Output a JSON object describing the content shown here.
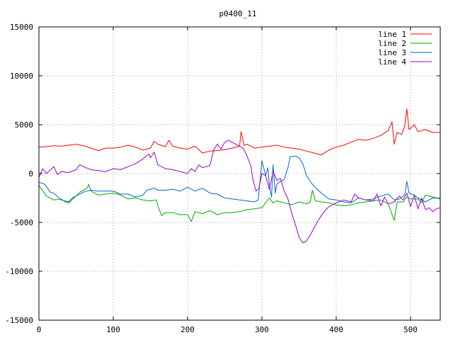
{
  "chart_data": {
    "type": "line",
    "title": "p0400_11",
    "xlim": [
      0,
      540
    ],
    "ylim": [
      -15000,
      15000
    ],
    "x_ticks": [
      0,
      100,
      200,
      300,
      400,
      500
    ],
    "y_ticks": [
      -15000,
      -10000,
      -5000,
      0,
      5000,
      10000,
      15000
    ],
    "x_tick_labels": [
      "0",
      "100",
      "200",
      "300",
      "400",
      "500"
    ],
    "y_tick_labels": [
      "-15000",
      "-10000",
      "-5000",
      "0",
      "5000",
      "10000",
      "15000"
    ],
    "grid": true,
    "legend_placement": "top-right",
    "series": [
      {
        "name": "line 1",
        "color": "#ff0000",
        "points": [
          [
            0,
            2700
          ],
          [
            10,
            2750
          ],
          [
            20,
            2850
          ],
          [
            30,
            2800
          ],
          [
            40,
            2900
          ],
          [
            50,
            3000
          ],
          [
            60,
            2850
          ],
          [
            70,
            2600
          ],
          [
            80,
            2350
          ],
          [
            90,
            2600
          ],
          [
            100,
            2600
          ],
          [
            110,
            2700
          ],
          [
            120,
            2900
          ],
          [
            130,
            2700
          ],
          [
            140,
            2400
          ],
          [
            150,
            2600
          ],
          [
            155,
            3300
          ],
          [
            160,
            3000
          ],
          [
            170,
            2750
          ],
          [
            175,
            3400
          ],
          [
            180,
            2800
          ],
          [
            190,
            2600
          ],
          [
            200,
            2500
          ],
          [
            210,
            2800
          ],
          [
            220,
            2100
          ],
          [
            230,
            2300
          ],
          [
            240,
            2350
          ],
          [
            250,
            2450
          ],
          [
            260,
            2600
          ],
          [
            270,
            2800
          ],
          [
            272,
            4300
          ],
          [
            276,
            2900
          ],
          [
            280,
            3000
          ],
          [
            290,
            2600
          ],
          [
            300,
            2700
          ],
          [
            310,
            2800
          ],
          [
            320,
            2900
          ],
          [
            330,
            2700
          ],
          [
            340,
            2600
          ],
          [
            350,
            2500
          ],
          [
            360,
            2300
          ],
          [
            370,
            2100
          ],
          [
            380,
            1900
          ],
          [
            390,
            2400
          ],
          [
            400,
            2700
          ],
          [
            410,
            2900
          ],
          [
            420,
            3200
          ],
          [
            430,
            3500
          ],
          [
            440,
            3400
          ],
          [
            450,
            3600
          ],
          [
            460,
            3900
          ],
          [
            470,
            4400
          ],
          [
            475,
            5300
          ],
          [
            478,
            3000
          ],
          [
            482,
            4200
          ],
          [
            488,
            4000
          ],
          [
            492,
            4800
          ],
          [
            495,
            6600
          ],
          [
            498,
            4500
          ],
          [
            505,
            5000
          ],
          [
            510,
            4300
          ],
          [
            520,
            4500
          ],
          [
            530,
            4200
          ],
          [
            540,
            4200
          ]
        ]
      },
      {
        "name": "line 2",
        "color": "#00aa00",
        "points": [
          [
            0,
            -1200
          ],
          [
            10,
            -2300
          ],
          [
            20,
            -2700
          ],
          [
            30,
            -2600
          ],
          [
            35,
            -2900
          ],
          [
            40,
            -3000
          ],
          [
            50,
            -2300
          ],
          [
            55,
            -1900
          ],
          [
            60,
            -1700
          ],
          [
            65,
            -1500
          ],
          [
            67,
            -1100
          ],
          [
            70,
            -1800
          ],
          [
            80,
            -2200
          ],
          [
            90,
            -2100
          ],
          [
            100,
            -2000
          ],
          [
            110,
            -2200
          ],
          [
            120,
            -2600
          ],
          [
            130,
            -2500
          ],
          [
            140,
            -2700
          ],
          [
            150,
            -2800
          ],
          [
            158,
            -2700
          ],
          [
            160,
            -3300
          ],
          [
            165,
            -4300
          ],
          [
            170,
            -4000
          ],
          [
            180,
            -4000
          ],
          [
            190,
            -4200
          ],
          [
            200,
            -4200
          ],
          [
            205,
            -4900
          ],
          [
            210,
            -3900
          ],
          [
            220,
            -4100
          ],
          [
            230,
            -3800
          ],
          [
            240,
            -4200
          ],
          [
            250,
            -4000
          ],
          [
            260,
            -4000
          ],
          [
            270,
            -3900
          ],
          [
            280,
            -3700
          ],
          [
            290,
            -3600
          ],
          [
            300,
            -3500
          ],
          [
            310,
            -2500
          ],
          [
            315,
            -3000
          ],
          [
            320,
            -2800
          ],
          [
            330,
            -3000
          ],
          [
            340,
            -3200
          ],
          [
            350,
            -2900
          ],
          [
            360,
            -3100
          ],
          [
            365,
            -2900
          ],
          [
            368,
            -1700
          ],
          [
            372,
            -2800
          ],
          [
            380,
            -2900
          ],
          [
            390,
            -3000
          ],
          [
            400,
            -3200
          ],
          [
            410,
            -3300
          ],
          [
            420,
            -3200
          ],
          [
            430,
            -3000
          ],
          [
            440,
            -2900
          ],
          [
            450,
            -2800
          ],
          [
            460,
            -2700
          ],
          [
            470,
            -3100
          ],
          [
            478,
            -4800
          ],
          [
            482,
            -2900
          ],
          [
            490,
            -2900
          ],
          [
            495,
            -2400
          ],
          [
            500,
            -2600
          ],
          [
            510,
            -2600
          ],
          [
            515,
            -3000
          ],
          [
            520,
            -2200
          ],
          [
            530,
            -2400
          ],
          [
            540,
            -2600
          ]
        ]
      },
      {
        "name": "line 3",
        "color": "#0066cc",
        "points": [
          [
            0,
            -900
          ],
          [
            8,
            -1100
          ],
          [
            15,
            -1900
          ],
          [
            20,
            -2000
          ],
          [
            30,
            -2700
          ],
          [
            40,
            -2900
          ],
          [
            45,
            -2500
          ],
          [
            50,
            -2300
          ],
          [
            60,
            -1900
          ],
          [
            70,
            -1700
          ],
          [
            80,
            -1800
          ],
          [
            90,
            -1800
          ],
          [
            100,
            -1800
          ],
          [
            110,
            -2100
          ],
          [
            120,
            -2100
          ],
          [
            130,
            -2400
          ],
          [
            140,
            -2200
          ],
          [
            145,
            -1700
          ],
          [
            150,
            -1600
          ],
          [
            155,
            -1500
          ],
          [
            160,
            -1700
          ],
          [
            170,
            -1700
          ],
          [
            180,
            -1600
          ],
          [
            190,
            -1800
          ],
          [
            200,
            -1400
          ],
          [
            210,
            -1800
          ],
          [
            220,
            -1500
          ],
          [
            230,
            -2000
          ],
          [
            240,
            -2100
          ],
          [
            250,
            -2500
          ],
          [
            260,
            -2600
          ],
          [
            270,
            -2700
          ],
          [
            280,
            -2800
          ],
          [
            290,
            -2900
          ],
          [
            295,
            -2700
          ],
          [
            300,
            1300
          ],
          [
            305,
            -200
          ],
          [
            308,
            600
          ],
          [
            310,
            -1100
          ],
          [
            313,
            -2400
          ],
          [
            315,
            900
          ],
          [
            318,
            -2000
          ],
          [
            320,
            -1100
          ],
          [
            325,
            -800
          ],
          [
            330,
            -600
          ],
          [
            335,
            600
          ],
          [
            338,
            1700
          ],
          [
            345,
            1800
          ],
          [
            350,
            1600
          ],
          [
            355,
            1000
          ],
          [
            360,
            -200
          ],
          [
            365,
            -800
          ],
          [
            370,
            -1300
          ],
          [
            380,
            -2000
          ],
          [
            390,
            -2600
          ],
          [
            400,
            -2700
          ],
          [
            410,
            -2900
          ],
          [
            420,
            -3000
          ],
          [
            430,
            -2500
          ],
          [
            440,
            -2700
          ],
          [
            450,
            -2600
          ],
          [
            460,
            -2300
          ],
          [
            470,
            -2100
          ],
          [
            478,
            -2700
          ],
          [
            485,
            -2600
          ],
          [
            492,
            -2200
          ],
          [
            495,
            -800
          ],
          [
            498,
            -2000
          ],
          [
            505,
            -2200
          ],
          [
            510,
            -2500
          ],
          [
            520,
            -2900
          ],
          [
            530,
            -2500
          ],
          [
            540,
            -2500
          ]
        ]
      },
      {
        "name": "line 4",
        "color": "#9900cc",
        "points": [
          [
            0,
            -400
          ],
          [
            5,
            500
          ],
          [
            10,
            0
          ],
          [
            20,
            700
          ],
          [
            25,
            -100
          ],
          [
            30,
            200
          ],
          [
            40,
            100
          ],
          [
            50,
            400
          ],
          [
            55,
            900
          ],
          [
            60,
            700
          ],
          [
            70,
            400
          ],
          [
            80,
            300
          ],
          [
            90,
            200
          ],
          [
            100,
            500
          ],
          [
            110,
            400
          ],
          [
            120,
            700
          ],
          [
            130,
            1000
          ],
          [
            140,
            1500
          ],
          [
            148,
            2000
          ],
          [
            150,
            1600
          ],
          [
            155,
            2200
          ],
          [
            160,
            900
          ],
          [
            170,
            500
          ],
          [
            180,
            400
          ],
          [
            190,
            200
          ],
          [
            200,
            0
          ],
          [
            205,
            500
          ],
          [
            210,
            200
          ],
          [
            215,
            900
          ],
          [
            220,
            600
          ],
          [
            230,
            800
          ],
          [
            235,
            2400
          ],
          [
            240,
            3000
          ],
          [
            245,
            2500
          ],
          [
            250,
            3200
          ],
          [
            255,
            3400
          ],
          [
            260,
            3200
          ],
          [
            265,
            3000
          ],
          [
            270,
            2800
          ],
          [
            275,
            2600
          ],
          [
            280,
            1800
          ],
          [
            285,
            800
          ],
          [
            288,
            -600
          ],
          [
            292,
            -1800
          ],
          [
            296,
            -1500
          ],
          [
            300,
            0
          ],
          [
            305,
            -200
          ],
          [
            310,
            -1600
          ],
          [
            315,
            200
          ],
          [
            318,
            -300
          ],
          [
            320,
            -700
          ],
          [
            325,
            -500
          ],
          [
            330,
            -1800
          ],
          [
            335,
            -2600
          ],
          [
            340,
            -4000
          ],
          [
            345,
            -5200
          ],
          [
            350,
            -6500
          ],
          [
            355,
            -7100
          ],
          [
            360,
            -6900
          ],
          [
            365,
            -6300
          ],
          [
            370,
            -5600
          ],
          [
            375,
            -4900
          ],
          [
            380,
            -4300
          ],
          [
            385,
            -3800
          ],
          [
            390,
            -3400
          ],
          [
            395,
            -3200
          ],
          [
            400,
            -3000
          ],
          [
            410,
            -2700
          ],
          [
            420,
            -2900
          ],
          [
            425,
            -2100
          ],
          [
            430,
            -2500
          ],
          [
            440,
            -2700
          ],
          [
            450,
            -2800
          ],
          [
            455,
            -2100
          ],
          [
            460,
            -3300
          ],
          [
            465,
            -2400
          ],
          [
            470,
            -3100
          ],
          [
            478,
            -2900
          ],
          [
            485,
            -2300
          ],
          [
            490,
            -2700
          ],
          [
            495,
            -2000
          ],
          [
            500,
            -3400
          ],
          [
            505,
            -2200
          ],
          [
            510,
            -3600
          ],
          [
            515,
            -2500
          ],
          [
            520,
            -3700
          ],
          [
            525,
            -3500
          ],
          [
            530,
            -3900
          ],
          [
            535,
            -3600
          ],
          [
            540,
            -3500
          ]
        ]
      }
    ]
  }
}
